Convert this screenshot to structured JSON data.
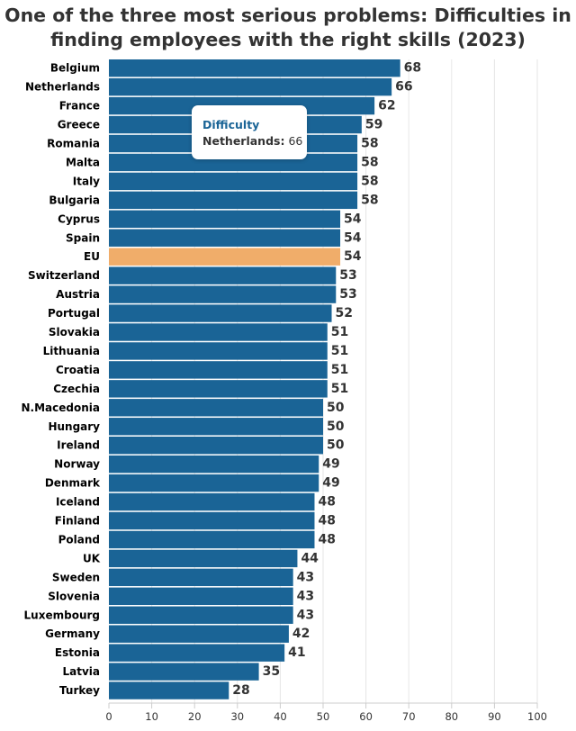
{
  "title": {
    "line1": "One of the three most serious problems: Difficulties in",
    "line2": "finding employees with the right skills (2023)"
  },
  "tooltip": {
    "series": "Difficulty",
    "label": "Netherlands:",
    "value": "66"
  },
  "colors": {
    "bar": "#1a6496",
    "highlight": "#f0ad6a",
    "grid": "#e6e6e6",
    "text": "#333333"
  },
  "chart_data": {
    "type": "bar",
    "orientation": "horizontal",
    "title": "One of the three most serious problems: Difficulties in finding employees with the right skills (2023)",
    "categories": [
      "Belgium",
      "Netherlands",
      "France",
      "Greece",
      "Romania",
      "Malta",
      "Italy",
      "Bulgaria",
      "Cyprus",
      "Spain",
      "EU",
      "Switzerland",
      "Austria",
      "Portugal",
      "Slovakia",
      "Lithuania",
      "Croatia",
      "Czechia",
      "N.Macedonia",
      "Hungary",
      "Ireland",
      "Norway",
      "Denmark",
      "Iceland",
      "Finland",
      "Poland",
      "UK",
      "Sweden",
      "Slovenia",
      "Luxembourg",
      "Germany",
      "Estonia",
      "Latvia",
      "Turkey"
    ],
    "series": [
      {
        "name": "Difficulty",
        "values": [
          68,
          66,
          62,
          59,
          58,
          58,
          58,
          58,
          54,
          54,
          54,
          53,
          53,
          52,
          51,
          51,
          51,
          51,
          50,
          50,
          50,
          49,
          49,
          48,
          48,
          48,
          44,
          43,
          43,
          43,
          42,
          41,
          35,
          28
        ]
      }
    ],
    "highlight": "EU",
    "xlim": [
      0,
      100
    ],
    "xticks": [
      0,
      10,
      20,
      30,
      40,
      50,
      60,
      70,
      80,
      90,
      100
    ],
    "grid": true,
    "legend": "none"
  }
}
